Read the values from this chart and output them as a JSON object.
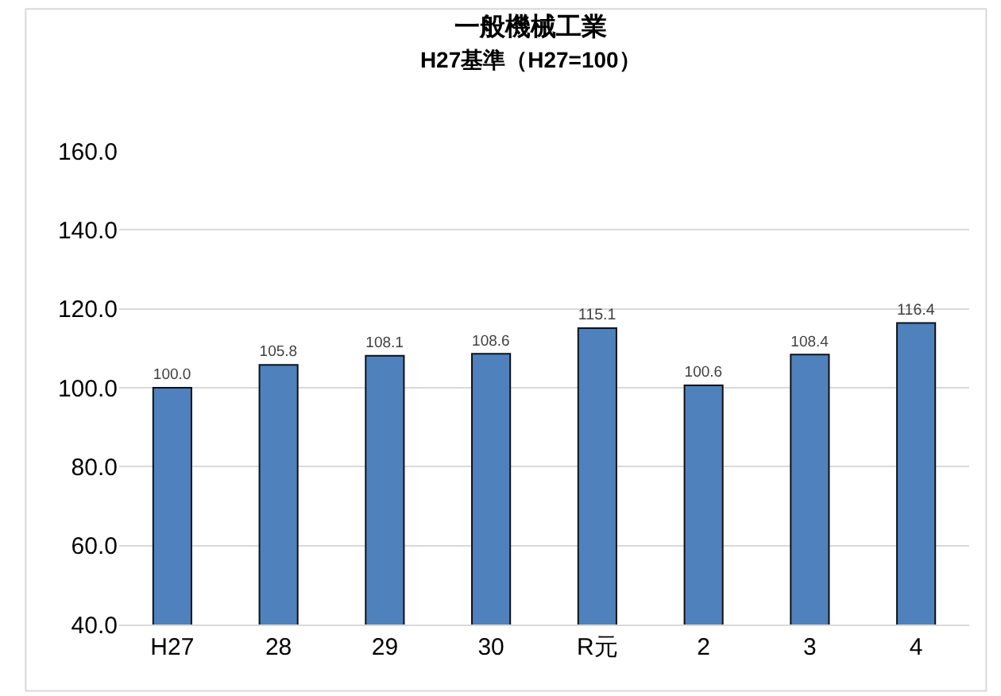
{
  "chart_data": {
    "type": "bar",
    "title": "一般機械工業",
    "subtitle": "H27基準（H27=100）",
    "categories": [
      "H27",
      "28",
      "29",
      "30",
      "R元",
      "2",
      "3",
      "4"
    ],
    "values": [
      100.0,
      105.8,
      108.1,
      108.6,
      115.1,
      100.6,
      108.4,
      116.4
    ],
    "value_labels": [
      "100.0",
      "105.8",
      "108.1",
      "108.6",
      "115.1",
      "100.6",
      "108.4",
      "116.4"
    ],
    "color": "#4f81bd",
    "ylim": [
      40,
      160
    ],
    "yticks": [
      {
        "value": 40,
        "label": "40.0"
      },
      {
        "value": 60,
        "label": "60.0"
      },
      {
        "value": 80,
        "label": "80.0"
      },
      {
        "value": 100,
        "label": "100.0"
      },
      {
        "value": 120,
        "label": "120.0"
      },
      {
        "value": 140,
        "label": "140.0"
      },
      {
        "value": 160,
        "label": "160.0"
      }
    ],
    "grid": "y",
    "legend": false
  }
}
